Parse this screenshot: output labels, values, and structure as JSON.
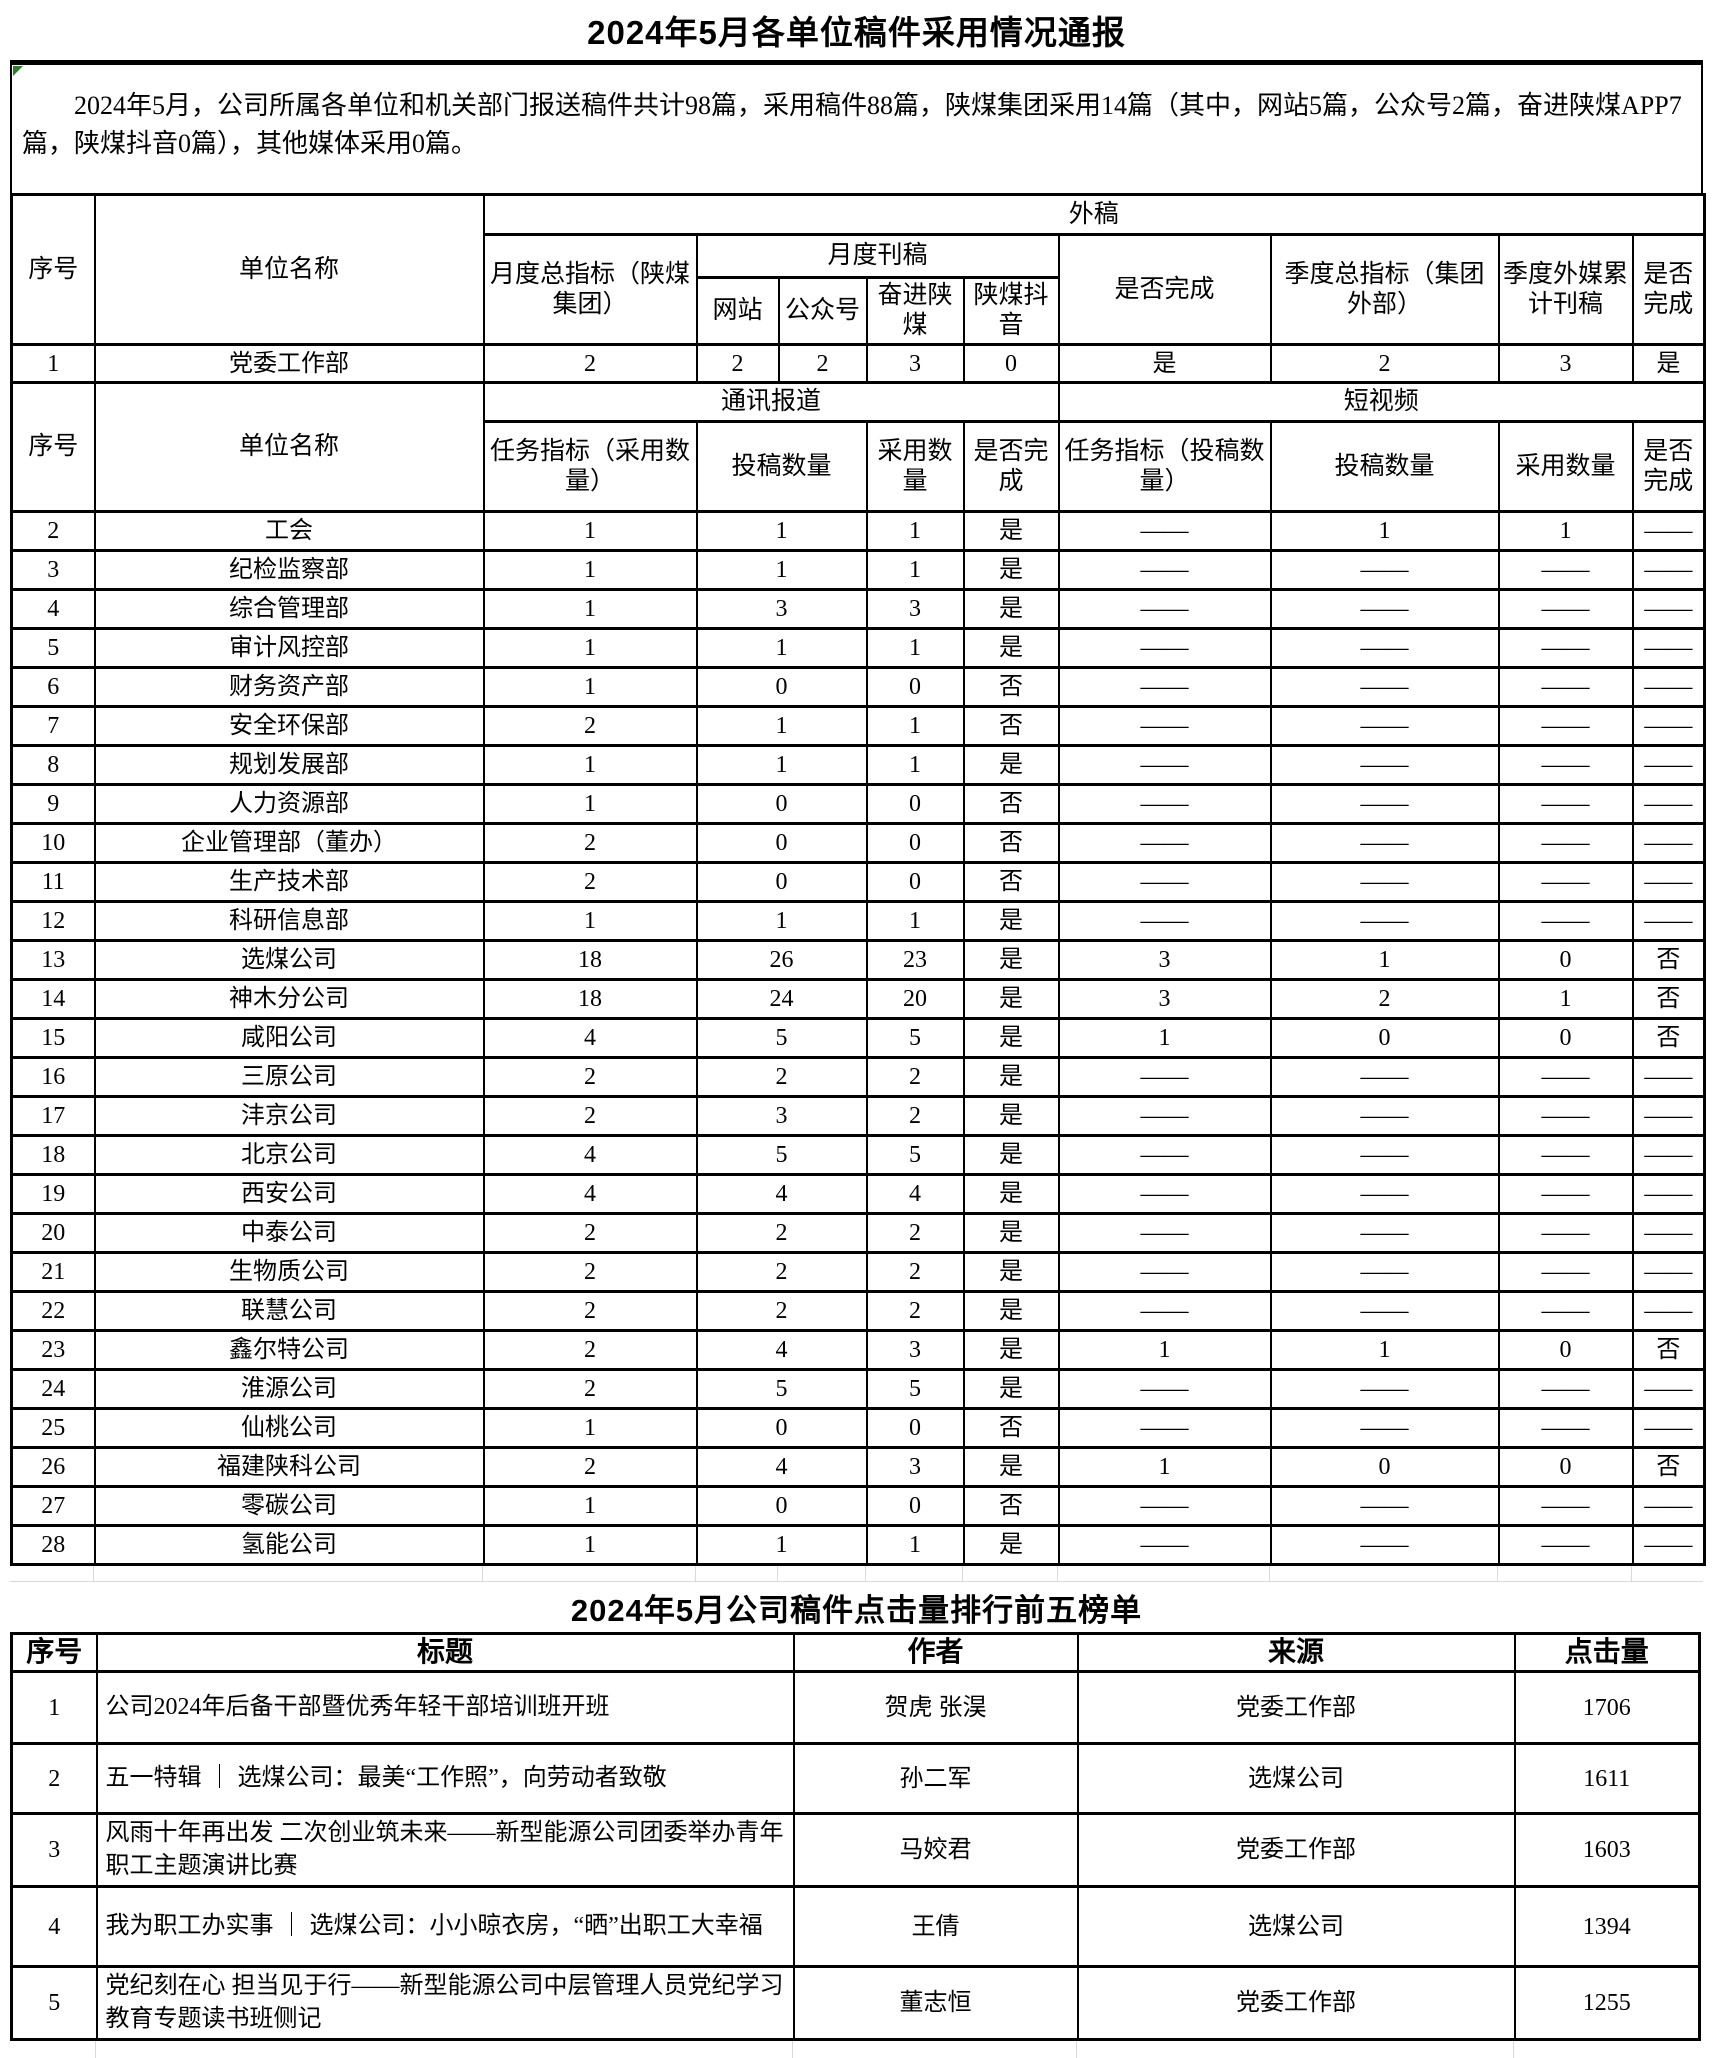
{
  "report": {
    "title": "2024年5月各单位稿件采用情况通报",
    "intro": "2024年5月，公司所属各单位和机关部门报送稿件共计98篇，采用稿件88篇，陕煤集团采用14篇（其中，网站5篇，公众号2篇，奋进陕煤APP7篇，陕煤抖音0篇），其他媒体采用0篇。"
  },
  "main_table": {
    "headers": {
      "no": "序号",
      "unit": "单位名称",
      "waigao": "外稿",
      "monthly_total": "月度总指标（陕煤集团）",
      "monthly_pub": "月度刊稿",
      "site": "网站",
      "wechat": "公众号",
      "app": "奋进陕煤",
      "douyin": "陕煤抖音",
      "done": "是否完成",
      "quarter_total": "季度总指标（集团外部）",
      "quarter_ext": "季度外媒累计刊稿",
      "done2": "是否完成",
      "tongxun": "通讯报道",
      "video": "短视频",
      "task_adopt": "任务指标（采用数量）",
      "submit": "投稿数量",
      "adopt": "采用数量",
      "done3": "是否完成",
      "task_submit": "任务指标（投稿数量）",
      "submit2": "投稿数量",
      "adopt2": "采用数量",
      "done4": "是否完成"
    },
    "row1": {
      "no": "1",
      "name": "党委工作部",
      "values": [
        "2",
        "2",
        "2",
        "3",
        "0",
        "是",
        "2",
        "3",
        "是"
      ]
    },
    "rows": [
      {
        "no": "2",
        "name": "工会",
        "tx": [
          "1",
          "1",
          "1",
          "是"
        ],
        "sv": [
          "——",
          "1",
          "1",
          "——"
        ]
      },
      {
        "no": "3",
        "name": "纪检监察部",
        "tx": [
          "1",
          "1",
          "1",
          "是"
        ],
        "sv": [
          "——",
          "——",
          "——",
          "——"
        ]
      },
      {
        "no": "4",
        "name": "综合管理部",
        "tx": [
          "1",
          "3",
          "3",
          "是"
        ],
        "sv": [
          "——",
          "——",
          "——",
          "——"
        ]
      },
      {
        "no": "5",
        "name": "审计风控部",
        "tx": [
          "1",
          "1",
          "1",
          "是"
        ],
        "sv": [
          "——",
          "——",
          "——",
          "——"
        ]
      },
      {
        "no": "6",
        "name": "财务资产部",
        "tx": [
          "1",
          "0",
          "0",
          "否"
        ],
        "sv": [
          "——",
          "——",
          "——",
          "——"
        ]
      },
      {
        "no": "7",
        "name": "安全环保部",
        "tx": [
          "2",
          "1",
          "1",
          "否"
        ],
        "sv": [
          "——",
          "——",
          "——",
          "——"
        ]
      },
      {
        "no": "8",
        "name": "规划发展部",
        "tx": [
          "1",
          "1",
          "1",
          "是"
        ],
        "sv": [
          "——",
          "——",
          "——",
          "——"
        ]
      },
      {
        "no": "9",
        "name": "人力资源部",
        "tx": [
          "1",
          "0",
          "0",
          "否"
        ],
        "sv": [
          "——",
          "——",
          "——",
          "——"
        ]
      },
      {
        "no": "10",
        "name": "企业管理部（董办）",
        "tx": [
          "2",
          "0",
          "0",
          "否"
        ],
        "sv": [
          "——",
          "——",
          "——",
          "——"
        ]
      },
      {
        "no": "11",
        "name": "生产技术部",
        "tx": [
          "2",
          "0",
          "0",
          "否"
        ],
        "sv": [
          "——",
          "——",
          "——",
          "——"
        ]
      },
      {
        "no": "12",
        "name": "科研信息部",
        "tx": [
          "1",
          "1",
          "1",
          "是"
        ],
        "sv": [
          "——",
          "——",
          "——",
          "——"
        ]
      },
      {
        "no": "13",
        "name": "选煤公司",
        "tx": [
          "18",
          "26",
          "23",
          "是"
        ],
        "sv": [
          "3",
          "1",
          "0",
          "否"
        ]
      },
      {
        "no": "14",
        "name": "神木分公司",
        "tx": [
          "18",
          "24",
          "20",
          "是"
        ],
        "sv": [
          "3",
          "2",
          "1",
          "否"
        ]
      },
      {
        "no": "15",
        "name": "咸阳公司",
        "tx": [
          "4",
          "5",
          "5",
          "是"
        ],
        "sv": [
          "1",
          "0",
          "0",
          "否"
        ]
      },
      {
        "no": "16",
        "name": "三原公司",
        "tx": [
          "2",
          "2",
          "2",
          "是"
        ],
        "sv": [
          "——",
          "——",
          "——",
          "——"
        ]
      },
      {
        "no": "17",
        "name": "沣京公司",
        "tx": [
          "2",
          "3",
          "2",
          "是"
        ],
        "sv": [
          "——",
          "——",
          "——",
          "——"
        ]
      },
      {
        "no": "18",
        "name": "北京公司",
        "tx": [
          "4",
          "5",
          "5",
          "是"
        ],
        "sv": [
          "——",
          "——",
          "——",
          "——"
        ]
      },
      {
        "no": "19",
        "name": "西安公司",
        "tx": [
          "4",
          "4",
          "4",
          "是"
        ],
        "sv": [
          "——",
          "——",
          "——",
          "——"
        ]
      },
      {
        "no": "20",
        "name": "中泰公司",
        "tx": [
          "2",
          "2",
          "2",
          "是"
        ],
        "sv": [
          "——",
          "——",
          "——",
          "——"
        ]
      },
      {
        "no": "21",
        "name": "生物质公司",
        "tx": [
          "2",
          "2",
          "2",
          "是"
        ],
        "sv": [
          "——",
          "——",
          "——",
          "——"
        ]
      },
      {
        "no": "22",
        "name": "联慧公司",
        "tx": [
          "2",
          "2",
          "2",
          "是"
        ],
        "sv": [
          "——",
          "——",
          "——",
          "——"
        ]
      },
      {
        "no": "23",
        "name": "鑫尔特公司",
        "tx": [
          "2",
          "4",
          "3",
          "是"
        ],
        "sv": [
          "1",
          "1",
          "0",
          "否"
        ]
      },
      {
        "no": "24",
        "name": "淮源公司",
        "tx": [
          "2",
          "5",
          "5",
          "是"
        ],
        "sv": [
          "——",
          "——",
          "——",
          "——"
        ]
      },
      {
        "no": "25",
        "name": "仙桃公司",
        "tx": [
          "1",
          "0",
          "0",
          "否"
        ],
        "sv": [
          "——",
          "——",
          "——",
          "——"
        ]
      },
      {
        "no": "26",
        "name": "福建陕科公司",
        "tx": [
          "2",
          "4",
          "3",
          "是"
        ],
        "sv": [
          "1",
          "0",
          "0",
          "否"
        ]
      },
      {
        "no": "27",
        "name": "零碳公司",
        "tx": [
          "1",
          "0",
          "0",
          "否"
        ],
        "sv": [
          "——",
          "——",
          "——",
          "——"
        ]
      },
      {
        "no": "28",
        "name": "氢能公司",
        "tx": [
          "1",
          "1",
          "1",
          "是"
        ],
        "sv": [
          "——",
          "——",
          "——",
          "——"
        ]
      }
    ]
  },
  "ranking": {
    "title": "2024年5月公司稿件点击量排行前五榜单",
    "headers": {
      "no": "序号",
      "title": "标题",
      "author": "作者",
      "source": "来源",
      "clicks": "点击量"
    },
    "rows": [
      {
        "no": "1",
        "title": "公司2024年后备干部暨优秀年轻干部培训班开班",
        "author": "贺虎 张淏",
        "source": "党委工作部",
        "clicks": "1706"
      },
      {
        "no": "2",
        "title": "五一特辑 ｜ 选煤公司：最美“工作照”，向劳动者致敬",
        "author": "孙二军",
        "source": "选煤公司",
        "clicks": "1611"
      },
      {
        "no": "3",
        "title": "风雨十年再出发 二次创业筑未来——新型能源公司团委举办青年职工主题演讲比赛",
        "author": "马姣君",
        "source": "党委工作部",
        "clicks": "1603"
      },
      {
        "no": "4",
        "title": "我为职工办实事 ｜ 选煤公司：小小晾衣房，“晒”出职工大幸福",
        "author": "王倩",
        "source": "选煤公司",
        "clicks": "1394"
      },
      {
        "no": "5",
        "title": "党纪刻在心 担当见于行——新型能源公司中层管理人员党纪学习教育专题读书班侧记",
        "author": "董志恒",
        "source": "党委工作部",
        "clicks": "1255"
      }
    ]
  },
  "colors": {
    "border": "#000000",
    "gridline": "#d9d9d9",
    "flag_green": "#2e7d32",
    "background": "#ffffff",
    "text": "#000000"
  }
}
